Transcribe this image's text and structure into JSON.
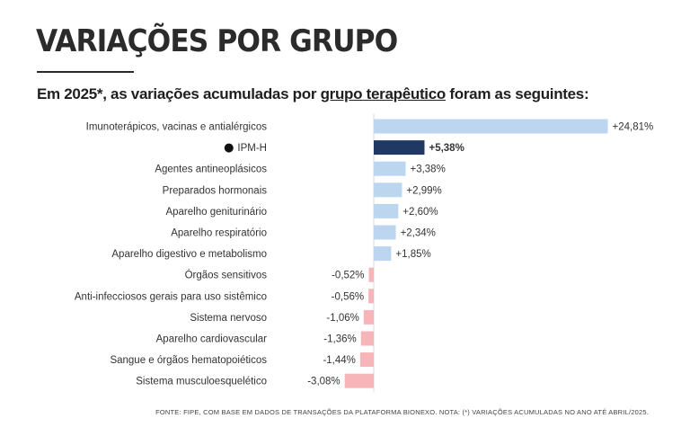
{
  "header": {
    "title": "VARIAÇÕES POR GRUPO",
    "subtitle_part1": "Em 2025*, as variações acumuladas por ",
    "subtitle_link": "grupo terapêutico",
    "subtitle_part2": " foram as seguintes:"
  },
  "footnote": "FONTE: FIPE, COM BASE EM DADOS DE TRANSAÇÕES DA PLATAFORMA BIONEXO. NOTA: (*) VARIAÇÕES ACUMULADAS NO ANO ATÉ ABRIL/2025.",
  "colors": {
    "positive": "#bcd6ef",
    "highlight": "#1f3864",
    "negative": "#f6b5b8",
    "axis": "#d9d9d9"
  },
  "chart_data": {
    "type": "bar",
    "orientation": "horizontal",
    "categories": [
      "Imunoterápicos, vacinas e antialérgicos",
      "IPM-H",
      "Agentes antineoplásicos",
      "Preparados hormonais",
      "Aparelho geniturinário",
      "Aparelho respiratório",
      "Aparelho digestivo e metabolismo",
      "Órgãos sensitivos",
      "Anti-infecciosos gerais para uso sistêmico",
      "Sistema nervoso",
      "Aparelho cardiovascular",
      "Sangue e órgãos hematopoiéticos",
      "Sistema musculoesquelético"
    ],
    "values": [
      24.81,
      5.38,
      3.38,
      2.99,
      2.6,
      2.34,
      1.85,
      -0.52,
      -0.56,
      -1.06,
      -1.36,
      -1.44,
      -3.08
    ],
    "data_labels": [
      "+24,81%",
      "+5,38%",
      "+3,38%",
      "+2,99%",
      "+2,60%",
      "+2,34%",
      "+1,85%",
      "-0,52%",
      "-0,56%",
      "-1,06%",
      "-1,36%",
      "-1,44%",
      "-3,08%"
    ],
    "highlight_category": "IPM-H",
    "highlight_marker": "●",
    "xlim": [
      -3.08,
      24.81
    ]
  }
}
